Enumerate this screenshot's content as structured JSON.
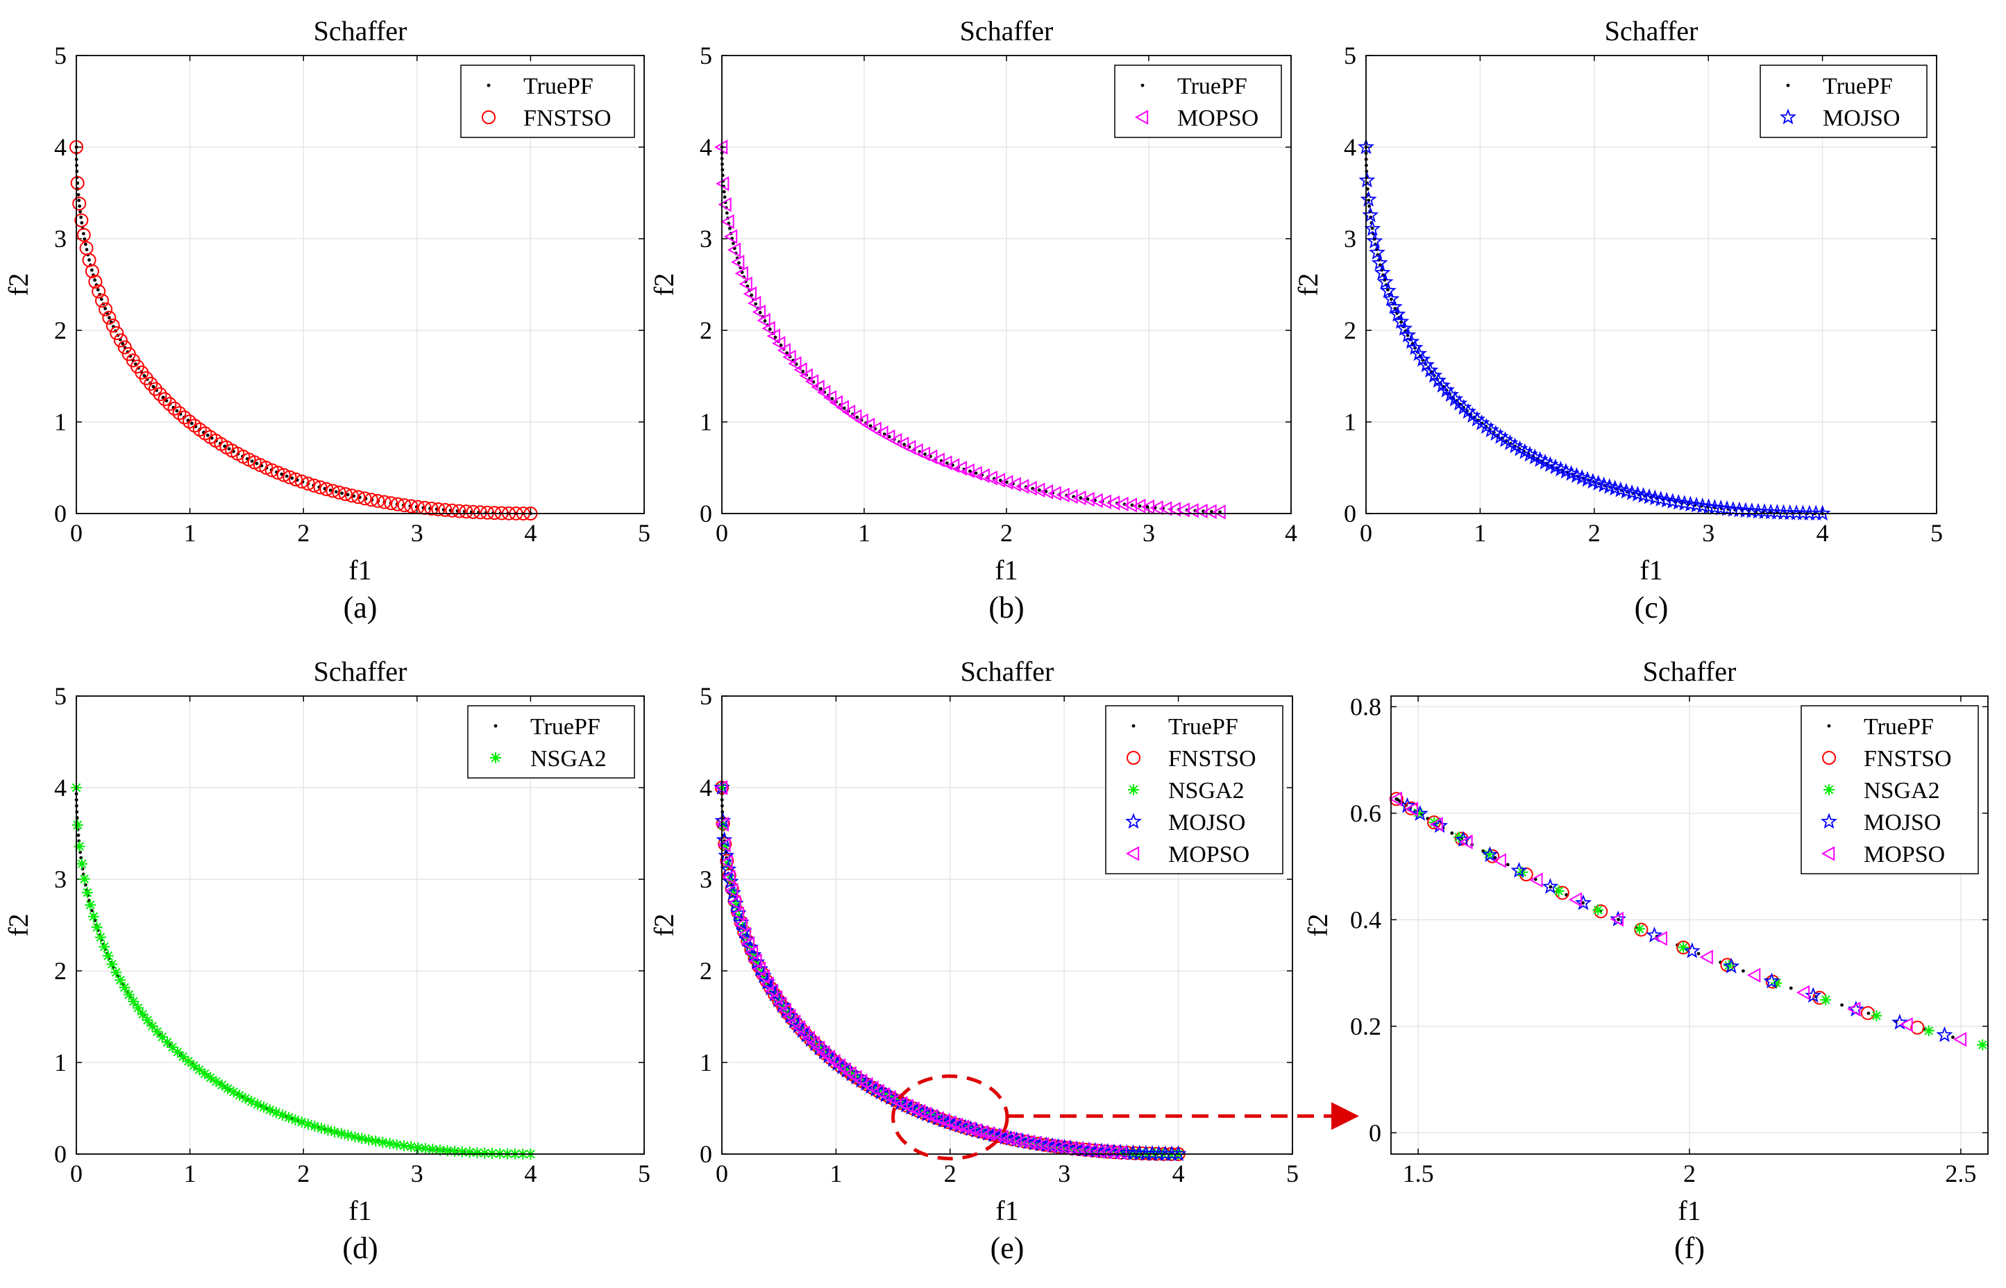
{
  "colors": {
    "truepf": "#000000",
    "fnstso": "#ff0000",
    "mopso": "#ff00ff",
    "mojso": "#0000ff",
    "nsga2": "#00ee00",
    "grid": "#e6e6e6",
    "arrow": "#dd0000"
  },
  "chart_data": [
    {
      "id": "a",
      "type": "scatter",
      "title": "Schaffer",
      "caption": "(a)",
      "xlabel": "f1",
      "ylabel": "f2",
      "xlim": [
        0,
        5
      ],
      "ylim": [
        0,
        5
      ],
      "xticks": [
        0,
        1,
        2,
        3,
        4,
        5
      ],
      "xtick_labels": [
        "0",
        "1",
        "2",
        "3",
        "4",
        "5"
      ],
      "yticks": [
        0,
        1,
        2,
        3,
        4,
        5
      ],
      "ytick_labels": [
        "0",
        "1",
        "2",
        "3",
        "4",
        "5"
      ],
      "grid": true,
      "legend_position": "top-right",
      "series": [
        {
          "name": "TruePF",
          "marker": "dot",
          "color": "#000000",
          "f1_range": [
            0,
            4
          ],
          "points": 120
        },
        {
          "name": "FNSTSO",
          "marker": "circle",
          "color": "#ff0000",
          "f1_range": [
            0,
            4
          ],
          "points": 85
        }
      ]
    },
    {
      "id": "b",
      "type": "scatter",
      "title": "Schaffer",
      "caption": "(b)",
      "xlabel": "f1",
      "ylabel": "f2",
      "xlim": [
        0,
        4
      ],
      "ylim": [
        0,
        5
      ],
      "xticks": [
        0,
        1,
        2,
        3,
        4
      ],
      "xtick_labels": [
        "0",
        "1",
        "2",
        "3",
        "4"
      ],
      "yticks": [
        0,
        1,
        2,
        3,
        4,
        5
      ],
      "ytick_labels": [
        "0",
        "1",
        "2",
        "3",
        "4",
        "5"
      ],
      "grid": true,
      "legend_position": "top-right",
      "series": [
        {
          "name": "TruePF",
          "marker": "dot",
          "color": "#000000",
          "f1_range": [
            0,
            3.5
          ],
          "points": 120
        },
        {
          "name": "MOPSO",
          "marker": "triangle-left",
          "color": "#ff00ff",
          "f1_range": [
            0,
            3.5
          ],
          "points": 75
        }
      ]
    },
    {
      "id": "c",
      "type": "scatter",
      "title": "Schaffer",
      "caption": "(c)",
      "xlabel": "f1",
      "ylabel": "f2",
      "xlim": [
        0,
        5
      ],
      "ylim": [
        0,
        5
      ],
      "xticks": [
        0,
        1,
        2,
        3,
        4,
        5
      ],
      "xtick_labels": [
        "0",
        "1",
        "2",
        "3",
        "4",
        "5"
      ],
      "yticks": [
        0,
        1,
        2,
        3,
        4,
        5
      ],
      "ytick_labels": [
        "0",
        "1",
        "2",
        "3",
        "4",
        "5"
      ],
      "grid": true,
      "legend_position": "top-right",
      "series": [
        {
          "name": "TruePF",
          "marker": "dot",
          "color": "#000000",
          "f1_range": [
            0,
            4
          ],
          "points": 120
        },
        {
          "name": "MOJSO",
          "marker": "star",
          "color": "#0000ff",
          "f1_range": [
            0,
            4
          ],
          "points": 95
        }
      ]
    },
    {
      "id": "d",
      "type": "scatter",
      "title": "Schaffer",
      "caption": "(d)",
      "xlabel": "f1",
      "ylabel": "f2",
      "xlim": [
        0,
        5
      ],
      "ylim": [
        0,
        5
      ],
      "xticks": [
        0,
        1,
        2,
        3,
        4,
        5
      ],
      "xtick_labels": [
        "0",
        "1",
        "2",
        "3",
        "4",
        "5"
      ],
      "yticks": [
        0,
        1,
        2,
        3,
        4,
        5
      ],
      "ytick_labels": [
        "0",
        "1",
        "2",
        "3",
        "4",
        "5"
      ],
      "grid": true,
      "legend_position": "top-right",
      "series": [
        {
          "name": "TruePF",
          "marker": "dot",
          "color": "#000000",
          "f1_range": [
            0,
            4
          ],
          "points": 120
        },
        {
          "name": "NSGA2",
          "marker": "asterisk",
          "color": "#00ee00",
          "f1_range": [
            0,
            4
          ],
          "points": 80
        }
      ]
    },
    {
      "id": "e",
      "type": "scatter",
      "title": "Schaffer",
      "caption": "(e)",
      "xlabel": "f1",
      "ylabel": "f2",
      "xlim": [
        0,
        5
      ],
      "ylim": [
        0,
        5
      ],
      "xticks": [
        0,
        1,
        2,
        3,
        4,
        5
      ],
      "xtick_labels": [
        "0",
        "1",
        "2",
        "3",
        "4",
        "5"
      ],
      "yticks": [
        0,
        1,
        2,
        3,
        4,
        5
      ],
      "ytick_labels": [
        "0",
        "1",
        "2",
        "3",
        "4",
        "5"
      ],
      "grid": true,
      "legend_position": "top-right",
      "annotation": {
        "type": "dashed-ellipse",
        "center": [
          2.0,
          0.4
        ],
        "radius_f1": 0.5,
        "radius_f2": 0.45,
        "arrow_to": "f"
      },
      "series": [
        {
          "name": "TruePF",
          "marker": "dot",
          "color": "#000000",
          "f1_range": [
            0,
            4
          ],
          "points": 120
        },
        {
          "name": "FNSTSO",
          "marker": "circle",
          "color": "#ff0000",
          "f1_range": [
            0,
            4
          ],
          "points": 85
        },
        {
          "name": "NSGA2",
          "marker": "asterisk",
          "color": "#00ee00",
          "f1_range": [
            0,
            4
          ],
          "points": 80
        },
        {
          "name": "MOJSO",
          "marker": "star",
          "color": "#0000ff",
          "f1_range": [
            0,
            4
          ],
          "points": 95
        },
        {
          "name": "MOPSO",
          "marker": "triangle-left",
          "color": "#ff00ff",
          "f1_range": [
            0,
            3.5
          ],
          "points": 75
        }
      ]
    },
    {
      "id": "f",
      "type": "scatter",
      "title": "Schaffer",
      "caption": "(f)",
      "xlabel": "f1",
      "ylabel": "f2",
      "xlim": [
        1.45,
        2.55
      ],
      "ylim": [
        -0.04,
        0.82
      ],
      "xticks": [
        1.5,
        2,
        2.5
      ],
      "xtick_labels": [
        "1.5",
        "2",
        "2.5"
      ],
      "yticks": [
        0,
        0.2,
        0.4,
        0.6,
        0.8
      ],
      "ytick_labels": [
        "0",
        "0.2",
        "0.4",
        "0.6",
        "0.8"
      ],
      "grid": true,
      "legend_position": "top-right",
      "series": [
        {
          "name": "TruePF",
          "marker": "dot",
          "color": "#000000",
          "f1_range": [
            1.46,
            2.54
          ],
          "points": 40
        },
        {
          "name": "FNSTSO",
          "marker": "circle",
          "color": "#ff0000",
          "f1_range": [
            1.46,
            2.42
          ],
          "points": 15
        },
        {
          "name": "NSGA2",
          "marker": "asterisk",
          "color": "#00ee00",
          "f1_range": [
            1.5,
            2.54
          ],
          "points": 15
        },
        {
          "name": "MOJSO",
          "marker": "star",
          "color": "#0000ff",
          "f1_range": [
            1.48,
            2.47
          ],
          "points": 17
        },
        {
          "name": "MOPSO",
          "marker": "triangle-left",
          "color": "#ff00ff",
          "f1_range": [
            1.46,
            2.5
          ],
          "points": 15
        }
      ]
    }
  ]
}
